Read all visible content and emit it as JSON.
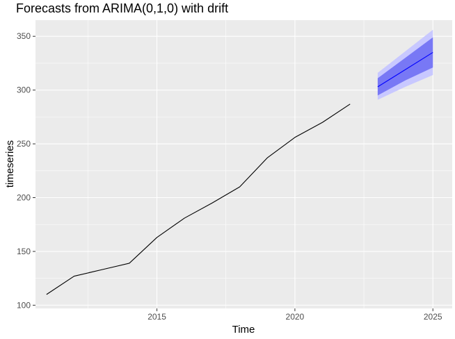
{
  "chart_data": {
    "type": "line",
    "title": "Forecasts from ARIMA(0,1,0) with drift",
    "xlabel": "Time",
    "ylabel": "timeseries",
    "xlim": [
      2010.6,
      2025.7
    ],
    "ylim": [
      97,
      365
    ],
    "x_ticks": [
      2015,
      2020,
      2025
    ],
    "x_tick_labels": [
      "2015",
      "2020",
      "2025"
    ],
    "y_ticks": [
      100,
      150,
      200,
      250,
      300,
      350
    ],
    "y_tick_labels": [
      "100",
      "150",
      "200",
      "250",
      "300",
      "350"
    ],
    "grid": true,
    "background": "#EBEBEB",
    "series": [
      {
        "kind": "observed",
        "color": "#000000",
        "x": [
          2011,
          2012,
          2013,
          2014,
          2015,
          2016,
          2017,
          2018,
          2019,
          2020,
          2021,
          2022
        ],
        "values": [
          110,
          127,
          133,
          139,
          163,
          181,
          195,
          210,
          237,
          256,
          270,
          287
        ]
      },
      {
        "kind": "forecast",
        "color": "#0000FF",
        "x": [
          2023,
          2024,
          2025
        ],
        "values": [
          303,
          319,
          335
        ]
      }
    ],
    "intervals": [
      {
        "level": "95",
        "color": "#C8C8FF",
        "x": [
          2023,
          2024,
          2025
        ],
        "lower": [
          291,
          303,
          314
        ],
        "upper": [
          316,
          336,
          356
        ]
      },
      {
        "level": "80",
        "color": "#7878F5",
        "x": [
          2023,
          2024,
          2025
        ],
        "lower": [
          295,
          309,
          321
        ],
        "upper": [
          311,
          330,
          349
        ]
      }
    ]
  }
}
